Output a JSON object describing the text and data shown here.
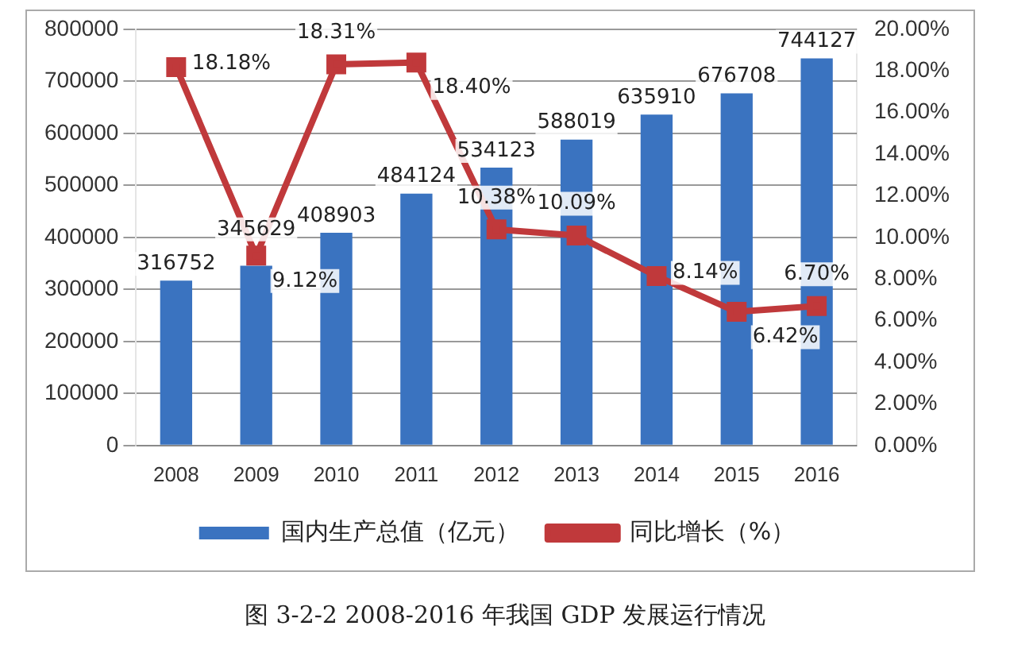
{
  "chart_data": {
    "type": "bar",
    "categories": [
      "2008",
      "2009",
      "2010",
      "2011",
      "2012",
      "2013",
      "2014",
      "2015",
      "2016"
    ],
    "series": [
      {
        "name": "国内生产总值（亿元）",
        "color": "#3a73c0",
        "values": [
          316752,
          345629,
          408903,
          484124,
          534123,
          588019,
          635910,
          676708,
          744127
        ],
        "value_labels": [
          "316752",
          "345629",
          "408903",
          "484124",
          "534123",
          "588019",
          "635910",
          "676708",
          "744127"
        ]
      },
      {
        "name": "同比增长（%）",
        "type": "line",
        "axis": "y2",
        "color": "#c0393b",
        "values": [
          18.18,
          9.12,
          18.31,
          18.4,
          10.38,
          10.09,
          8.14,
          6.42,
          6.7
        ],
        "value_labels": [
          "18.18%",
          "9.12%",
          "18.31%",
          "18.40%",
          "10.38%",
          "10.09%",
          "8.14%",
          "6.42%",
          "6.70%"
        ]
      }
    ],
    "ylim": [
      0,
      800000
    ],
    "yticks": [
      0,
      100000,
      200000,
      300000,
      400000,
      500000,
      600000,
      700000,
      800000
    ],
    "y2lim": [
      0,
      20
    ],
    "y2ticks": [
      {
        "value": 0,
        "label": "0.00%"
      },
      {
        "value": 2,
        "label": "2.00%"
      },
      {
        "value": 4,
        "label": "4.00%"
      },
      {
        "value": 6,
        "label": "6.00%"
      },
      {
        "value": 8,
        "label": "8.00%"
      },
      {
        "value": 10,
        "label": "10.00%"
      },
      {
        "value": 12,
        "label": "12.00%"
      },
      {
        "value": 14,
        "label": "14.00%"
      },
      {
        "value": 16,
        "label": "16.00%"
      },
      {
        "value": 18,
        "label": "18.00%"
      },
      {
        "value": 20,
        "label": "20.00%"
      }
    ],
    "grid": "y",
    "legend": "bottom",
    "marker": "square",
    "line_style": "solid",
    "annotations": [
      "图 3-2-2 2008-2016 年我国 GDP 发展运行情况"
    ]
  }
}
